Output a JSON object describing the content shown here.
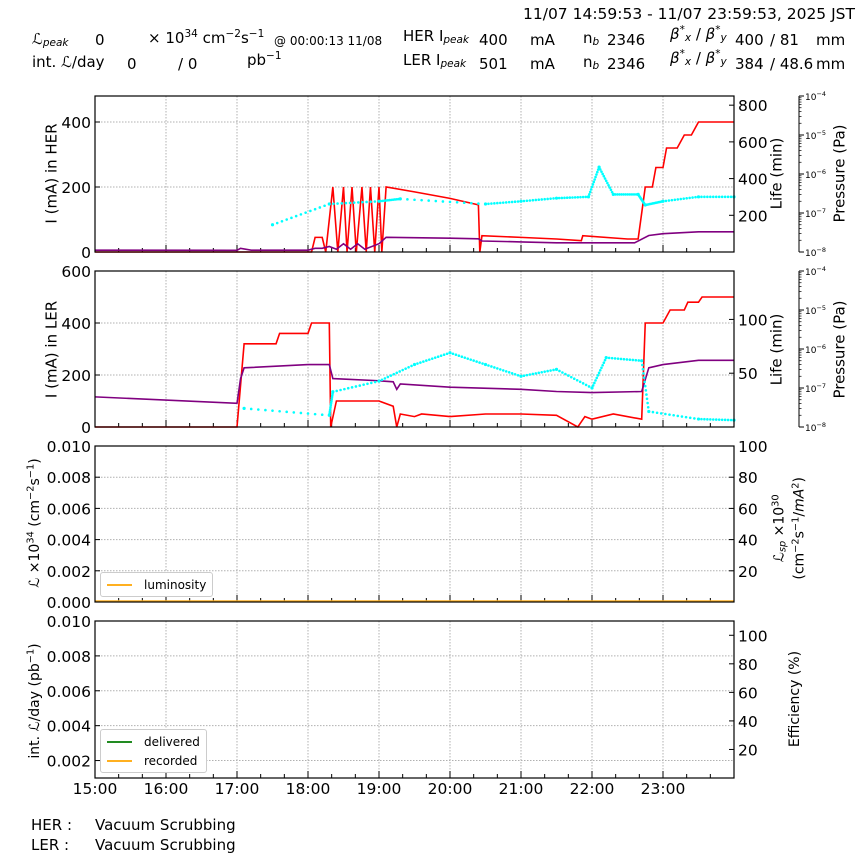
{
  "header": {
    "time_range": "11/07 14:59:53 - 11/07 23:59:53, 2025 JST",
    "lpeak_label": "ℒ",
    "lpeak_sub": "peak",
    "lpeak_value": "0",
    "lpeak_unit_prefix": "× 10",
    "lpeak_unit_exp": "34",
    "lpeak_unit_cm": " cm",
    "lpeak_unit_cm_exp": "−2",
    "lpeak_unit_s": "s",
    "lpeak_unit_s_exp": "−1",
    "lpeak_at": "@ 00:00:13 11/08",
    "intl_label": "int. ℒ/day",
    "intl_value1": "0",
    "intl_sep": "/  0",
    "intl_unit": "pb",
    "intl_unit_exp": "−1",
    "her": {
      "label": "HER I",
      "sub": "peak",
      "ipeak": "400",
      "unit": "mA",
      "nb_label": "n",
      "nb_sub": "b",
      "nb": "2346",
      "beta_x": "400",
      "beta_y": "/ 81",
      "beta_unit": "mm"
    },
    "ler": {
      "label": "LER I",
      "sub": "peak",
      "ipeak": "501",
      "unit": "mA",
      "nb_label": "n",
      "nb_sub": "b",
      "nb": "2346",
      "beta_x": "384",
      "beta_y": "/ 48.6",
      "beta_unit": "mm"
    },
    "beta_label": "β*x / β*y"
  },
  "footer": {
    "her_label": "HER :",
    "her_status": "Vacuum Scrubbing",
    "ler_label": "LER :",
    "ler_status": "Vacuum Scrubbing"
  },
  "colors": {
    "current": "#ff0000",
    "lifetime": "#800080",
    "pressure": "#00ffff",
    "luminosity": "#ffb020",
    "delivered": "#228b22",
    "recorded": "#ffb020",
    "grid": "#b0b0b0"
  },
  "legends": {
    "luminosity": "luminosity",
    "delivered": "delivered",
    "recorded": "recorded"
  },
  "chart_data": [
    {
      "type": "line",
      "title": "HER",
      "ylabel": "I (mA) in HER",
      "ylabel_right": "Life (min)",
      "ylabel_right2": "Pressure (Pa)",
      "ylim": [
        0,
        480
      ],
      "ylim_right": [
        0,
        850
      ],
      "ylim_right2": [
        "1e-8",
        "1e-4"
      ],
      "yticks": [
        "0",
        "200",
        "400"
      ],
      "yticks_right": [
        "200",
        "400",
        "600",
        "800"
      ],
      "yticks_right2": [
        "10^-8",
        "10^-7",
        "10^-6",
        "10^-5",
        "10^-4"
      ],
      "x": [
        "15:00",
        "16:00",
        "17:00",
        "18:00",
        "19:00",
        "20:00",
        "21:00",
        "22:00",
        "23:00"
      ],
      "series": [
        {
          "name": "current",
          "points": [
            [
              15.0,
              0
            ],
            [
              18.05,
              0
            ],
            [
              18.1,
              45
            ],
            [
              18.2,
              45
            ],
            [
              18.25,
              0
            ],
            [
              18.35,
              200
            ],
            [
              18.42,
              0
            ],
            [
              18.5,
              200
            ],
            [
              18.55,
              0
            ],
            [
              18.62,
              200
            ],
            [
              18.68,
              0
            ],
            [
              18.76,
              200
            ],
            [
              18.82,
              0
            ],
            [
              18.88,
              200
            ],
            [
              18.94,
              0
            ],
            [
              19.0,
              200
            ],
            [
              19.04,
              0
            ],
            [
              19.1,
              200
            ],
            [
              19.5,
              185
            ],
            [
              20.0,
              165
            ],
            [
              20.4,
              145
            ],
            [
              20.42,
              0
            ],
            [
              20.45,
              50
            ],
            [
              21.0,
              45
            ],
            [
              21.5,
              40
            ],
            [
              21.85,
              35
            ],
            [
              21.87,
              50
            ],
            [
              22.5,
              40
            ],
            [
              22.65,
              40
            ],
            [
              22.75,
              200
            ],
            [
              22.85,
              200
            ],
            [
              22.9,
              260
            ],
            [
              23.0,
              260
            ],
            [
              23.05,
              320
            ],
            [
              23.2,
              320
            ],
            [
              23.3,
              360
            ],
            [
              23.4,
              360
            ],
            [
              23.5,
              400
            ],
            [
              24.0,
              400
            ]
          ]
        },
        {
          "name": "lifetime",
          "points": [
            [
              15.0,
              10
            ],
            [
              17.0,
              9
            ],
            [
              17.05,
              20
            ],
            [
              17.2,
              10
            ],
            [
              18.0,
              10
            ],
            [
              18.1,
              20
            ],
            [
              18.2,
              20
            ],
            [
              18.3,
              30
            ],
            [
              18.4,
              15
            ],
            [
              18.5,
              45
            ],
            [
              18.6,
              15
            ],
            [
              18.7,
              45
            ],
            [
              18.8,
              15
            ],
            [
              19.0,
              45
            ],
            [
              19.1,
              80
            ],
            [
              20.0,
              75
            ],
            [
              20.4,
              72
            ],
            [
              20.45,
              60
            ],
            [
              21.0,
              55
            ],
            [
              21.5,
              50
            ],
            [
              22.0,
              50
            ],
            [
              22.6,
              50
            ],
            [
              22.8,
              90
            ],
            [
              23.0,
              100
            ],
            [
              23.5,
              110
            ],
            [
              24.0,
              110
            ]
          ]
        },
        {
          "name": "pressure",
          "points": [
            [
              17.5,
              "5e-8"
            ],
            [
              18.3,
              "1.7e-7"
            ],
            [
              19.0,
              "2.0e-7"
            ],
            [
              19.3,
              "2.3e-7"
            ],
            [
              20.5,
              "1.7e-7"
            ],
            [
              21.0,
              "2.0e-7"
            ],
            [
              21.5,
              "2.4e-7"
            ],
            [
              21.95,
              "2.6e-7"
            ],
            [
              22.1,
              "1.5e-6"
            ],
            [
              22.3,
              "3e-7"
            ],
            [
              22.65,
              "3e-7"
            ],
            [
              22.75,
              "1.6e-7"
            ],
            [
              23.0,
              "2.0e-7"
            ],
            [
              23.5,
              "2.6e-7"
            ],
            [
              24.0,
              "2.6e-7"
            ]
          ]
        }
      ]
    },
    {
      "type": "line",
      "title": "LER",
      "ylabel": "I (mA) in LER",
      "ylabel_right": "Life (min)",
      "ylabel_right2": "Pressure (Pa)",
      "ylim": [
        0,
        600
      ],
      "ylim_right": [
        0,
        145
      ],
      "ylim_right2": [
        "1e-8",
        "1e-4"
      ],
      "yticks": [
        "0",
        "200",
        "400",
        "600"
      ],
      "yticks_right": [
        "50",
        "100"
      ],
      "yticks_right2": [
        "10^-8",
        "10^-7",
        "10^-6",
        "10^-5",
        "10^-4"
      ],
      "x": [
        "15:00",
        "16:00",
        "17:00",
        "18:00",
        "19:00",
        "20:00",
        "21:00",
        "22:00",
        "23:00"
      ],
      "series": [
        {
          "name": "current",
          "points": [
            [
              15.0,
              0
            ],
            [
              17.0,
              0
            ],
            [
              17.1,
              320
            ],
            [
              17.55,
              320
            ],
            [
              17.6,
              360
            ],
            [
              18.0,
              360
            ],
            [
              18.05,
              400
            ],
            [
              18.3,
              400
            ],
            [
              18.32,
              0
            ],
            [
              18.4,
              100
            ],
            [
              19.0,
              100
            ],
            [
              19.2,
              80
            ],
            [
              19.25,
              0
            ],
            [
              19.3,
              50
            ],
            [
              19.5,
              40
            ],
            [
              19.6,
              50
            ],
            [
              20.0,
              40
            ],
            [
              20.5,
              50
            ],
            [
              21.0,
              50
            ],
            [
              21.5,
              45
            ],
            [
              21.8,
              0
            ],
            [
              21.9,
              40
            ],
            [
              22.0,
              30
            ],
            [
              22.3,
              50
            ],
            [
              22.7,
              30
            ],
            [
              22.75,
              400
            ],
            [
              23.0,
              400
            ],
            [
              23.1,
              450
            ],
            [
              23.3,
              450
            ],
            [
              23.35,
              480
            ],
            [
              23.5,
              480
            ],
            [
              23.55,
              500
            ],
            [
              24.0,
              500
            ]
          ]
        },
        {
          "name": "lifetime",
          "points": [
            [
              15.0,
              28
            ],
            [
              17.0,
              22
            ],
            [
              17.05,
              45
            ],
            [
              17.1,
              55
            ],
            [
              18.0,
              58
            ],
            [
              18.3,
              58
            ],
            [
              18.35,
              45
            ],
            [
              19.0,
              43
            ],
            [
              19.2,
              42
            ],
            [
              19.25,
              35
            ],
            [
              19.3,
              40
            ],
            [
              20.0,
              37
            ],
            [
              21.0,
              35
            ],
            [
              21.5,
              33
            ],
            [
              22.0,
              32
            ],
            [
              22.7,
              33
            ],
            [
              22.8,
              55
            ],
            [
              23.0,
              58
            ],
            [
              23.5,
              62
            ],
            [
              24.0,
              62
            ]
          ]
        },
        {
          "name": "pressure",
          "points": [
            [
              17.1,
              "3e-8"
            ],
            [
              18.3,
              "2e-8"
            ],
            [
              18.35,
              "8e-8"
            ],
            [
              19.0,
              "1.5e-7"
            ],
            [
              19.5,
              "4e-7"
            ],
            [
              20.0,
              "8e-7"
            ],
            [
              20.5,
              "4e-7"
            ],
            [
              21.0,
              "2e-7"
            ],
            [
              21.5,
              "3e-7"
            ],
            [
              22.0,
              "1e-7"
            ],
            [
              22.2,
              "6e-7"
            ],
            [
              22.7,
              "5e-7"
            ],
            [
              22.8,
              "2.5e-8"
            ],
            [
              23.5,
              "1.6e-8"
            ],
            [
              24.0,
              "1.5e-8"
            ]
          ]
        }
      ]
    },
    {
      "type": "line",
      "title": "Luminosity",
      "ylabel": "ℒ ×10^34 (cm^-2 s^-1)",
      "ylabel_right": "ℒsp ×10^30 (cm^-2 s^-1/mA^2)",
      "ylim": [
        0,
        0.01
      ],
      "ylim_right": [
        0,
        100
      ],
      "yticks": [
        "0.000",
        "0.002",
        "0.004",
        "0.006",
        "0.008",
        "0.010"
      ],
      "yticks_right": [
        "20",
        "40",
        "60",
        "80",
        "100"
      ],
      "legend": [
        "luminosity"
      ],
      "legend_position": "lower left",
      "series": [
        {
          "name": "luminosity",
          "values": [
            0,
            0
          ]
        }
      ]
    },
    {
      "type": "line",
      "title": "Integrated luminosity",
      "ylabel": "int. ℒ/day (pb^-1)",
      "ylabel_right": "Efficiency (%)",
      "xlabel": "",
      "ylim": [
        0.001,
        0.01
      ],
      "ylim_right": [
        0,
        110
      ],
      "yticks": [
        "0.002",
        "0.004",
        "0.006",
        "0.008",
        "0.010"
      ],
      "yticks_right": [
        "20",
        "40",
        "60",
        "80",
        "100"
      ],
      "xticks": [
        "15:00",
        "16:00",
        "17:00",
        "18:00",
        "19:00",
        "20:00",
        "21:00",
        "22:00",
        "23:00"
      ],
      "legend": [
        "delivered",
        "recorded"
      ],
      "legend_position": "lower left",
      "series": [
        {
          "name": "delivered",
          "values": []
        },
        {
          "name": "recorded",
          "values": []
        }
      ]
    }
  ]
}
